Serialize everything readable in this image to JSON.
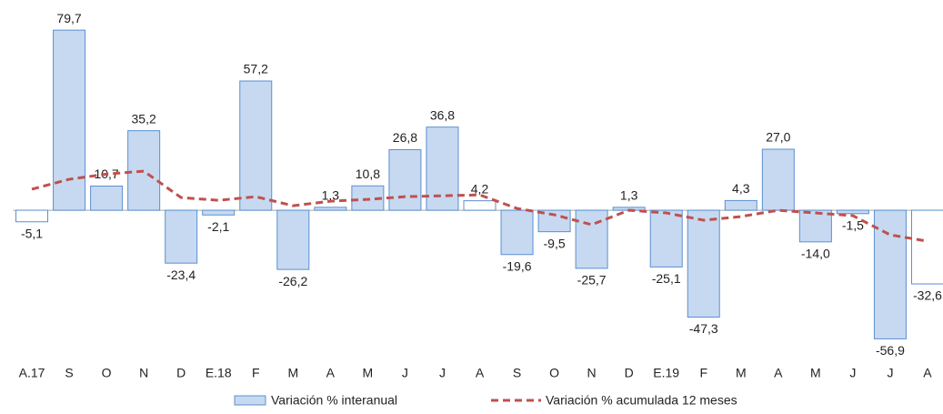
{
  "chart_data": {
    "type": "bar-line",
    "categories": [
      "A.17",
      "S",
      "O",
      "N",
      "D",
      "E.18",
      "F",
      "M",
      "A",
      "M",
      "J",
      "J",
      "A",
      "S",
      "O",
      "N",
      "D",
      "E.19",
      "F",
      "M",
      "A",
      "M",
      "J",
      "J",
      "A"
    ],
    "ylim": [
      -65,
      87
    ],
    "series": [
      {
        "name": "Variación % interanual",
        "type": "bar",
        "color": "#c6d9f1",
        "stroke": "#5b8fd0",
        "colors": [
          "#ffffff",
          "#c6d9f1",
          "#c6d9f1",
          "#c6d9f1",
          "#c6d9f1",
          "#c6d9f1",
          "#c6d9f1",
          "#c6d9f1",
          "#c6d9f1",
          "#c6d9f1",
          "#c6d9f1",
          "#c6d9f1",
          "#ffffff",
          "#c6d9f1",
          "#c6d9f1",
          "#c6d9f1",
          "#c6d9f1",
          "#c6d9f1",
          "#c6d9f1",
          "#c6d9f1",
          "#c6d9f1",
          "#c6d9f1",
          "#c6d9f1",
          "#c6d9f1",
          "#ffffff"
        ],
        "values": [
          -5.1,
          79.7,
          10.7,
          35.2,
          -23.4,
          -2.1,
          57.2,
          -26.2,
          1.3,
          10.8,
          26.8,
          36.8,
          4.2,
          -19.6,
          -9.5,
          -25.7,
          1.3,
          -25.1,
          -47.3,
          4.3,
          27.0,
          -14.0,
          -1.5,
          -56.9,
          -32.6
        ],
        "value_labels": [
          "-5,1",
          "79,7",
          "10,7",
          "35,2",
          "-23,4",
          "-2,1",
          "57,2",
          "-26,2",
          "1,3",
          "10,8",
          "26,8",
          "36,8",
          "4,2",
          "-19,6",
          "-9,5",
          "-25,7",
          "1,3",
          "-25,1",
          "-47,3",
          "4,3",
          "27,0",
          "-14,0",
          "-1,5",
          "-56,9",
          "-32,6"
        ]
      },
      {
        "name": "Variación % acumulada 12 meses",
        "type": "line",
        "color": "#c0504d",
        "values": [
          9.3,
          13.7,
          16,
          17.3,
          5.6,
          4.4,
          6,
          2,
          4,
          4.8,
          6,
          6.4,
          6.8,
          0.8,
          -2,
          -6.4,
          0,
          -1.2,
          -4.4,
          -2.8,
          0,
          -1.2,
          -2.4,
          -10.9,
          -13.7
        ]
      }
    ]
  }
}
